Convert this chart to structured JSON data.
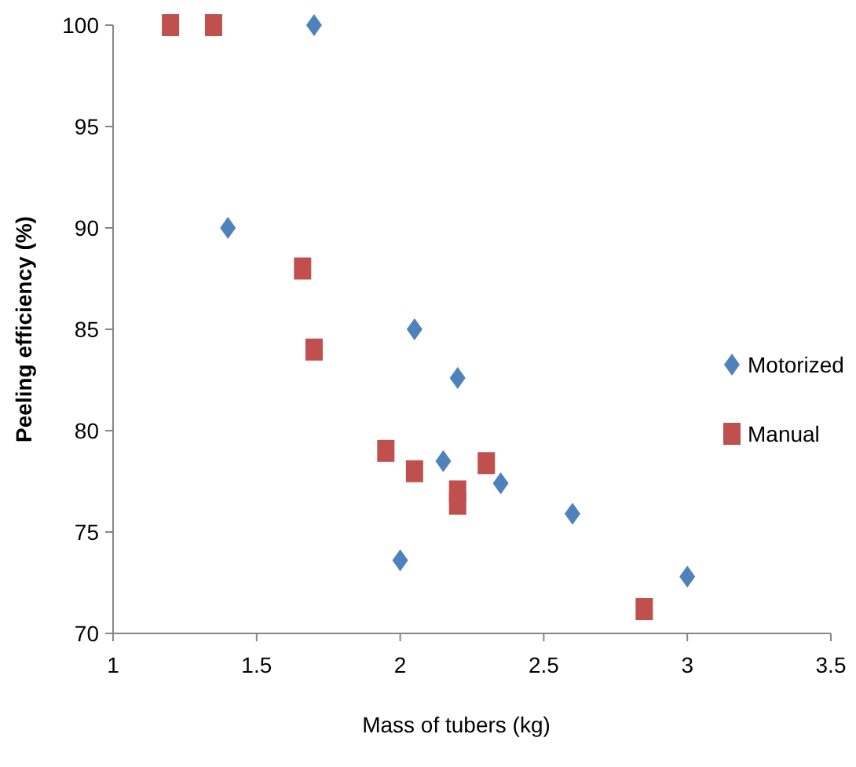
{
  "chart_data": {
    "type": "scatter",
    "xlabel": "Mass of tubers (kg)",
    "ylabel": "Peeling efficiency  (%)",
    "xlim": [
      1,
      3.5
    ],
    "xticks": [
      1,
      1.5,
      2,
      2.5,
      3,
      3.5
    ],
    "ylim": [
      70,
      100
    ],
    "yticks": [
      70,
      75,
      80,
      85,
      90,
      95,
      100
    ],
    "grid": false,
    "legend": "right",
    "series": [
      {
        "name": "Motorized",
        "color": "#4f81bd",
        "marker": "diamond",
        "x": [
          1.7,
          1.4,
          2.05,
          2.2,
          2.15,
          2.35,
          2.6,
          2.0,
          3.0
        ],
        "values": [
          100,
          90,
          85,
          82.6,
          78.5,
          77.4,
          75.9,
          73.6,
          72.8
        ]
      },
      {
        "name": "Manual",
        "color": "#c0504d",
        "marker": "square",
        "x": [
          1.2,
          1.35,
          1.66,
          1.7,
          1.95,
          2.05,
          2.3,
          2.2,
          2.2,
          2.85
        ],
        "values": [
          100,
          100,
          88,
          84,
          79,
          78,
          78.4,
          77,
          76.4,
          71.2
        ]
      }
    ]
  }
}
